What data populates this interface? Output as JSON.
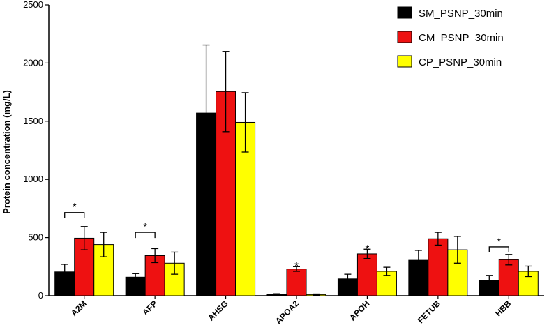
{
  "chart_data": {
    "type": "bar",
    "title": "",
    "xlabel": "",
    "ylabel": "Protein concentration (mg/L)",
    "ylim": [
      0,
      2500
    ],
    "yticks": [
      0,
      500,
      1000,
      1500,
      2000,
      2500
    ],
    "grid": false,
    "legend_position": "top-right",
    "categories": [
      "A2M",
      "AFP",
      "AHSG",
      "APOA2",
      "APOH",
      "FETUB",
      "HBB"
    ],
    "series": [
      {
        "name": "SM_PSNP_30min",
        "color": "#000000",
        "values": [
          205,
          160,
          1570,
          12,
          145,
          305,
          130
        ],
        "errors": [
          65,
          30,
          585,
          5,
          40,
          85,
          45
        ]
      },
      {
        "name": "CM_PSNP_30min",
        "color": "#ee1111",
        "values": [
          495,
          345,
          1755,
          230,
          360,
          490,
          310
        ],
        "errors": [
          100,
          60,
          345,
          20,
          40,
          55,
          45
        ]
      },
      {
        "name": "CP_PSNP_30min",
        "color": "#ffff00",
        "values": [
          440,
          280,
          1490,
          10,
          210,
          395,
          210
        ],
        "errors": [
          105,
          95,
          255,
          5,
          35,
          115,
          45
        ]
      }
    ],
    "annotations": [
      {
        "category": "A2M",
        "text": "*",
        "type": "bracket",
        "from": "SM_PSNP_30min",
        "to": "CM_PSNP_30min",
        "y": 715
      },
      {
        "category": "AFP",
        "text": "*",
        "type": "bracket",
        "from": "SM_PSNP_30min",
        "to": "CM_PSNP_30min",
        "y": 545
      },
      {
        "category": "APOA2",
        "text": "*",
        "type": "star",
        "series": "CM_PSNP_30min",
        "y": 265
      },
      {
        "category": "APOH",
        "text": "*",
        "type": "star",
        "series": "CM_PSNP_30min",
        "y": 410
      },
      {
        "category": "HBB",
        "text": "*",
        "type": "bracket",
        "from": "SM_PSNP_30min",
        "to": "CM_PSNP_30min",
        "y": 420
      }
    ]
  }
}
